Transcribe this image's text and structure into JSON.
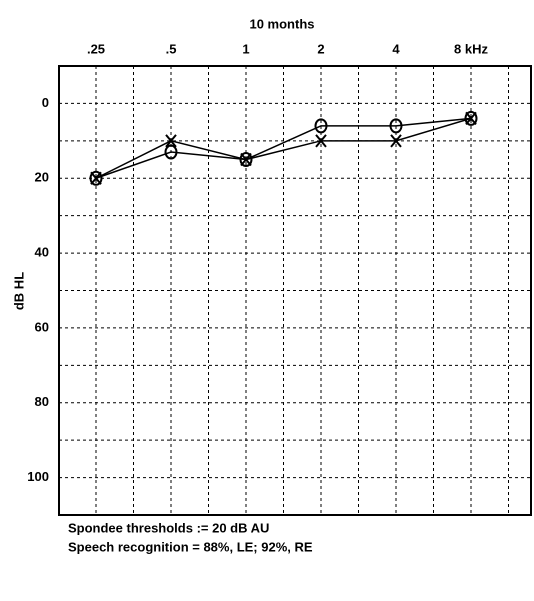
{
  "chart_data": {
    "type": "line",
    "title": "10 months",
    "categories": [
      ".25",
      ".5",
      "1",
      "2",
      "4",
      "8 kHz"
    ],
    "y_label": "dB HL",
    "y_inverted": true,
    "ylim": [
      -10,
      110
    ],
    "yticks": [
      0,
      20,
      40,
      60,
      80,
      100
    ],
    "yminorticks": [
      10,
      30,
      50,
      70,
      90
    ],
    "grid": true,
    "series": [
      {
        "marker": "o",
        "color": "#000000",
        "values": [
          20,
          13,
          15,
          6,
          6,
          4
        ]
      },
      {
        "marker": "x",
        "color": "#000000",
        "values": [
          20,
          10,
          15,
          10,
          10,
          4
        ]
      }
    ],
    "notes": [
      "Spondee thresholds := 20 dB AU",
      "Speech recognition = 88%, LE; 92%, RE"
    ]
  }
}
